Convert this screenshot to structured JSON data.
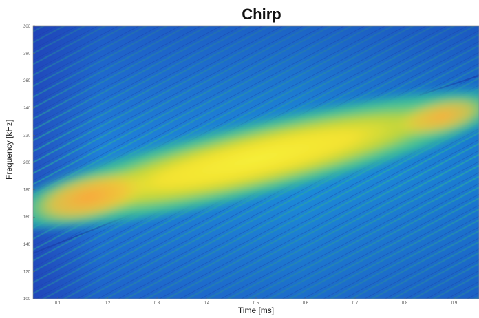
{
  "chart_data": {
    "type": "heatmap",
    "title": "Chirp",
    "xlabel": "Time [ms]",
    "ylabel": "Frequency [kHz]",
    "xlim": [
      0.05,
      0.95
    ],
    "ylim": [
      100,
      300
    ],
    "xticks": [
      "0.1",
      "0.2",
      "0.3",
      "0.4",
      "0.5",
      "0.6",
      "0.7",
      "0.8",
      "0.9"
    ],
    "yticks": [
      "100",
      "120",
      "140",
      "160",
      "180",
      "200",
      "220",
      "240",
      "260",
      "280",
      "300"
    ],
    "colormap": "parula",
    "ridge": {
      "x": [
        0.05,
        0.95
      ],
      "y": [
        165,
        240
      ],
      "peak_region_x": [
        0.12,
        0.82
      ]
    },
    "colors": {
      "low": "#2f56c8",
      "background": "#1f8bd8",
      "mid": "#2cb8a8",
      "high": "#f4e634",
      "peak": "#f9a93e"
    }
  }
}
